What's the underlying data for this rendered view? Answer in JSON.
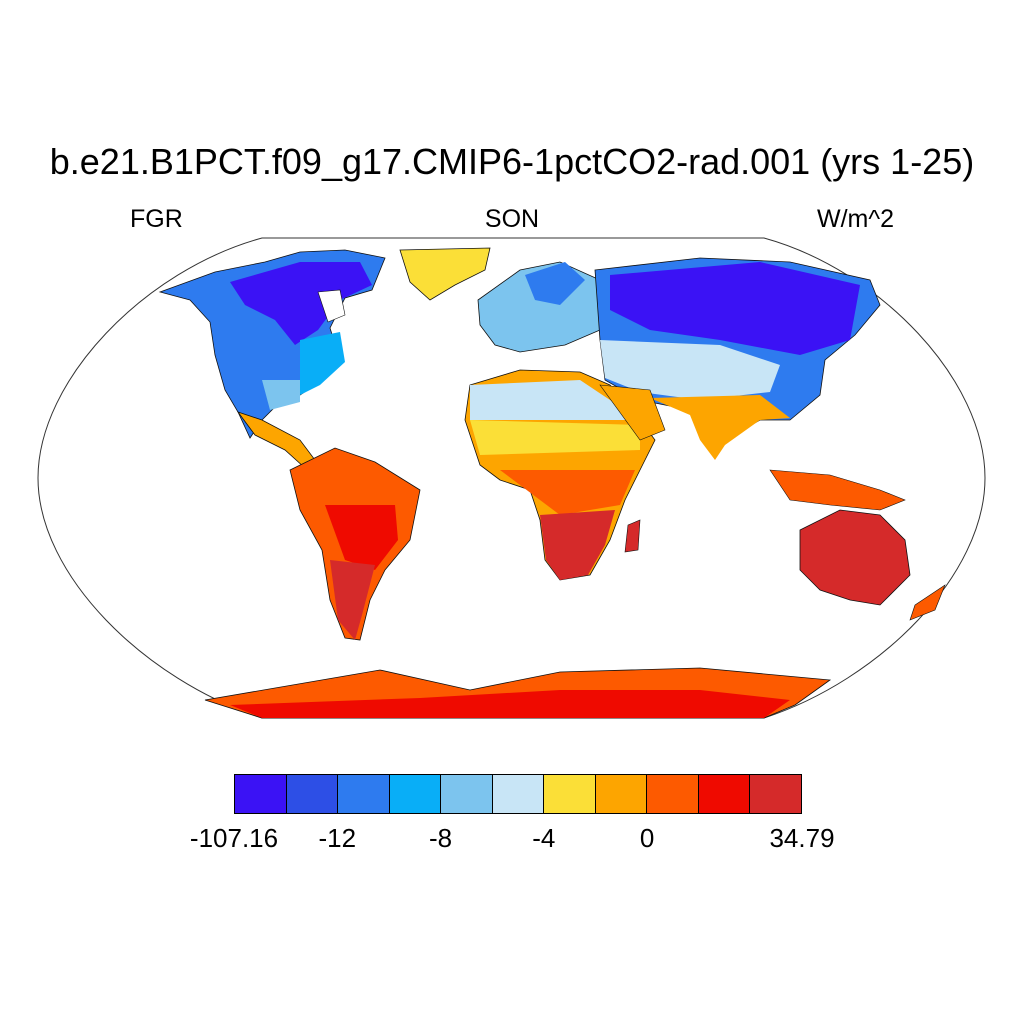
{
  "title": "b.e21.B1PCT.f09_g17.CMIP6-1pctCO2-rad.001 (yrs 1-25)",
  "left_label": "FGR",
  "center_label": "SON",
  "right_label": "W/m^2",
  "colorbar": {
    "colors": [
      "#3b12f5",
      "#2d4fe6",
      "#2e7bef",
      "#09aef7",
      "#7cc4ee",
      "#c8e5f6",
      "#fbdf37",
      "#fda500",
      "#fd5a00",
      "#ef0a00",
      "#d52a2a"
    ],
    "labels": [
      {
        "text": "-107.16",
        "boundary": 0
      },
      {
        "text": "-12",
        "boundary": 2
      },
      {
        "text": "-8",
        "boundary": 4
      },
      {
        "text": "-4",
        "boundary": 6
      },
      {
        "text": "0",
        "boundary": 8
      },
      {
        "text": "34.79",
        "boundary": 11
      }
    ]
  }
}
